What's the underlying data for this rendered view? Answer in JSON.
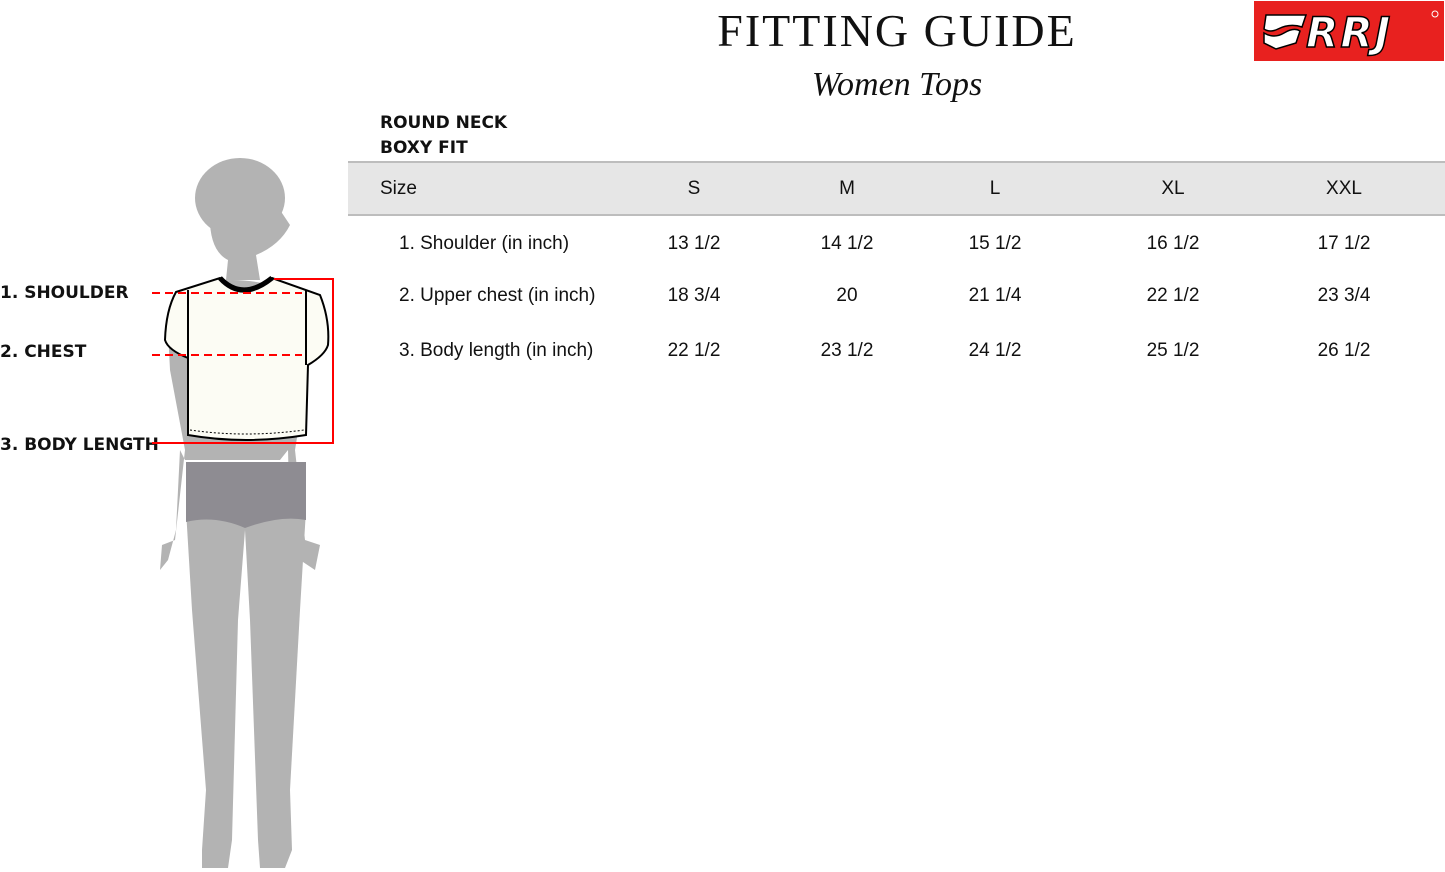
{
  "header": {
    "title": "FITTING GUIDE",
    "subtitle": "Women Tops",
    "logo_text": "RRJ",
    "brand_color": "#e8211f"
  },
  "style": {
    "line1": "ROUND NECK",
    "line2": "BOXY FIT"
  },
  "figure": {
    "labels": [
      "1. SHOULDER",
      "2. CHEST",
      "3. BODY LENGTH"
    ],
    "measure_color": "#ff0000"
  },
  "table": {
    "columns": [
      "Size",
      "S",
      "M",
      "L",
      "XL",
      "XXL"
    ],
    "rows": [
      {
        "label": "1. Shoulder (in inch)",
        "values": [
          "13 1/2",
          "14 1/2",
          "15 1/2",
          "16 1/2",
          "17 1/2"
        ]
      },
      {
        "label": "2. Upper chest (in inch)",
        "values": [
          "18 3/4",
          "20",
          "21 1/4",
          "22 1/2",
          "23 3/4"
        ]
      },
      {
        "label": "3. Body length (in inch)",
        "values": [
          "22 1/2",
          "23 1/2",
          "24 1/2",
          "25 1/2",
          "26 1/2"
        ]
      }
    ]
  }
}
